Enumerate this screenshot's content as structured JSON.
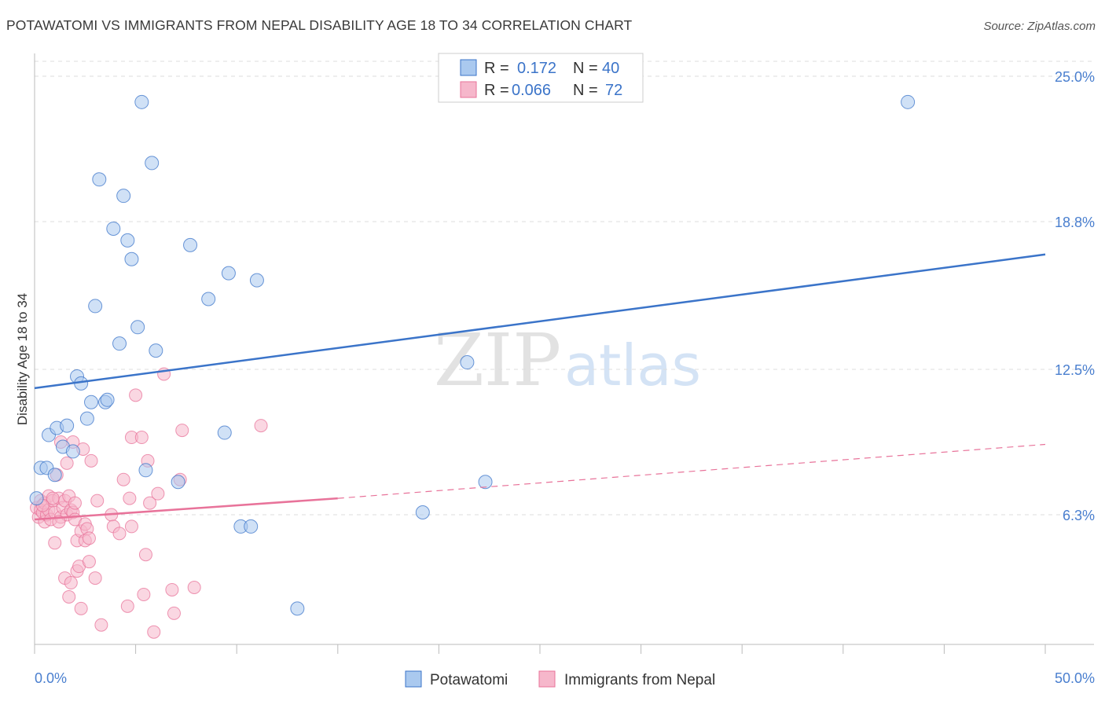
{
  "header": {
    "title": "POTAWATOMI VS IMMIGRANTS FROM NEPAL DISABILITY AGE 18 TO 34 CORRELATION CHART",
    "source": "Source: ZipAtlas.com"
  },
  "colors": {
    "blue": "#3b74c9",
    "blue_fill": "#aac9ef",
    "pink": "#e8739a",
    "pink_fill": "#f6b7cb",
    "grid": "#dddddd",
    "tick_text": "#4a7fcf"
  },
  "legend": {
    "r_label": "R =",
    "n_label": "N =",
    "items": [
      {
        "name": "Potawatomi",
        "r": "0.172",
        "n": "40"
      },
      {
        "name": "Immigrants from Nepal",
        "r": "0.066",
        "n": "72"
      }
    ]
  },
  "watermark": {
    "zip": "ZIP",
    "atlas": "atlas"
  },
  "chart_data": {
    "type": "scatter",
    "title": "POTAWATOMI VS IMMIGRANTS FROM NEPAL DISABILITY AGE 18 TO 34 CORRELATION CHART",
    "xlabel": "",
    "ylabel": "Disability Age 18 to 34",
    "xlim": [
      0,
      50
    ],
    "ylim": [
      0,
      26.3
    ],
    "x_tick_labels": [
      "0.0%",
      "50.0%"
    ],
    "y_ticks": [
      {
        "value": 6.3,
        "label": "6.3%"
      },
      {
        "value": 12.5,
        "label": "12.5%"
      },
      {
        "value": 18.8,
        "label": "18.8%"
      },
      {
        "value": 25.0,
        "label": "25.0%"
      }
    ],
    "grid": true,
    "series": [
      {
        "name": "Potawatomi",
        "color": "#3b74c9",
        "r": 0.172,
        "n": 40,
        "trend": {
          "x0": 0,
          "y0": 11.7,
          "x1": 50,
          "y1": 17.4
        },
        "points": [
          [
            0.1,
            7.0
          ],
          [
            0.3,
            8.3
          ],
          [
            0.6,
            8.3
          ],
          [
            0.7,
            9.7
          ],
          [
            1.0,
            8.0
          ],
          [
            1.1,
            10.0
          ],
          [
            1.4,
            9.2
          ],
          [
            1.6,
            10.1
          ],
          [
            1.9,
            9.0
          ],
          [
            2.1,
            12.2
          ],
          [
            2.3,
            11.9
          ],
          [
            2.6,
            10.4
          ],
          [
            2.8,
            11.1
          ],
          [
            3.0,
            15.2
          ],
          [
            3.2,
            20.6
          ],
          [
            3.5,
            11.1
          ],
          [
            3.6,
            11.2
          ],
          [
            3.9,
            18.5
          ],
          [
            4.2,
            13.6
          ],
          [
            4.4,
            19.9
          ],
          [
            4.6,
            18.0
          ],
          [
            4.8,
            17.2
          ],
          [
            5.1,
            14.3
          ],
          [
            5.3,
            23.9
          ],
          [
            5.5,
            8.2
          ],
          [
            5.8,
            21.3
          ],
          [
            6.0,
            13.3
          ],
          [
            7.1,
            7.7
          ],
          [
            7.7,
            17.8
          ],
          [
            8.6,
            15.5
          ],
          [
            9.6,
            16.6
          ],
          [
            9.4,
            9.8
          ],
          [
            10.2,
            5.8
          ],
          [
            10.7,
            5.8
          ],
          [
            11.0,
            16.3
          ],
          [
            13.0,
            2.3
          ],
          [
            19.2,
            6.4
          ],
          [
            21.4,
            12.8
          ],
          [
            22.3,
            7.7
          ],
          [
            43.2,
            23.9
          ]
        ]
      },
      {
        "name": "Immigrants from Nepal",
        "color": "#e8739a",
        "r": 0.066,
        "n": 72,
        "trend_solid": {
          "x0": 0,
          "y0": 6.1,
          "x1": 15,
          "y1": 7.0
        },
        "trend_dashed": {
          "x0": 15,
          "y0": 7.0,
          "x1": 50,
          "y1": 9.3
        },
        "points": [
          [
            0.1,
            6.6
          ],
          [
            0.2,
            6.2
          ],
          [
            0.3,
            6.9
          ],
          [
            0.3,
            6.5
          ],
          [
            0.4,
            6.4
          ],
          [
            0.5,
            6.8
          ],
          [
            0.5,
            6.0
          ],
          [
            0.6,
            6.3
          ],
          [
            0.7,
            7.1
          ],
          [
            0.7,
            6.5
          ],
          [
            0.8,
            6.1
          ],
          [
            0.9,
            6.9
          ],
          [
            1.0,
            6.4
          ],
          [
            1.0,
            5.1
          ],
          [
            1.1,
            8.0
          ],
          [
            1.2,
            7.0
          ],
          [
            1.3,
            6.2
          ],
          [
            1.3,
            9.4
          ],
          [
            1.4,
            6.6
          ],
          [
            1.5,
            3.6
          ],
          [
            1.5,
            6.9
          ],
          [
            1.6,
            8.5
          ],
          [
            1.6,
            6.3
          ],
          [
            1.7,
            2.8
          ],
          [
            1.7,
            7.1
          ],
          [
            1.8,
            6.5
          ],
          [
            1.8,
            3.4
          ],
          [
            1.9,
            6.4
          ],
          [
            1.9,
            9.4
          ],
          [
            2.0,
            6.8
          ],
          [
            2.0,
            6.1
          ],
          [
            2.1,
            3.9
          ],
          [
            2.1,
            5.2
          ],
          [
            2.2,
            4.1
          ],
          [
            2.3,
            2.3
          ],
          [
            2.3,
            5.6
          ],
          [
            2.4,
            9.1
          ],
          [
            2.5,
            5.9
          ],
          [
            2.5,
            5.2
          ],
          [
            2.6,
            5.7
          ],
          [
            2.7,
            5.3
          ],
          [
            2.7,
            4.3
          ],
          [
            2.8,
            8.6
          ],
          [
            3.0,
            3.6
          ],
          [
            3.1,
            6.9
          ],
          [
            3.3,
            1.6
          ],
          [
            3.8,
            6.3
          ],
          [
            3.9,
            5.8
          ],
          [
            4.2,
            5.5
          ],
          [
            4.4,
            7.8
          ],
          [
            4.6,
            2.4
          ],
          [
            4.7,
            7.0
          ],
          [
            4.8,
            5.8
          ],
          [
            4.8,
            9.6
          ],
          [
            5.0,
            11.4
          ],
          [
            5.3,
            9.6
          ],
          [
            5.4,
            2.9
          ],
          [
            5.5,
            4.6
          ],
          [
            5.6,
            8.6
          ],
          [
            5.7,
            6.8
          ],
          [
            5.9,
            1.3
          ],
          [
            6.1,
            7.2
          ],
          [
            6.4,
            12.3
          ],
          [
            6.8,
            3.1
          ],
          [
            6.9,
            2.1
          ],
          [
            7.2,
            7.8
          ],
          [
            7.3,
            9.9
          ],
          [
            7.9,
            3.2
          ],
          [
            11.2,
            10.1
          ],
          [
            0.9,
            7.0
          ],
          [
            0.4,
            6.7
          ],
          [
            1.2,
            6.0
          ]
        ]
      }
    ]
  },
  "bottom_legend": [
    {
      "name": "Potawatomi"
    },
    {
      "name": "Immigrants from Nepal"
    }
  ]
}
